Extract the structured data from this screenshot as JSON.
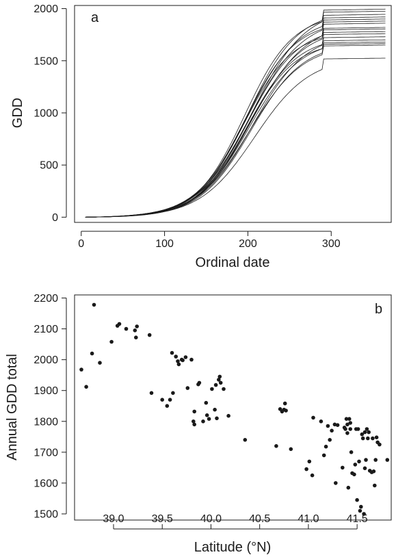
{
  "chart_data": [
    {
      "type": "line",
      "panel_label": "a",
      "xlabel": "Ordinal date",
      "ylabel": "GDD",
      "xlim": [
        -8,
        372
      ],
      "ylim": [
        -50,
        2030
      ],
      "xticks": [
        0,
        100,
        200,
        300
      ],
      "yticks": [
        0,
        500,
        1000,
        1500,
        2000
      ],
      "grid": false,
      "series": [
        {
          "final": 1995,
          "midpoint": 205,
          "width": 32
        },
        {
          "final": 1975,
          "midpoint": 200,
          "width": 30
        },
        {
          "final": 1945,
          "midpoint": 196,
          "width": 29
        },
        {
          "final": 1920,
          "midpoint": 199,
          "width": 31
        },
        {
          "final": 1900,
          "midpoint": 202,
          "width": 32
        },
        {
          "final": 1880,
          "midpoint": 197,
          "width": 30
        },
        {
          "final": 1860,
          "midpoint": 205,
          "width": 33
        },
        {
          "final": 1820,
          "midpoint": 200,
          "width": 30
        },
        {
          "final": 1805,
          "midpoint": 203,
          "width": 31
        },
        {
          "final": 1780,
          "midpoint": 195,
          "width": 29
        },
        {
          "final": 1760,
          "midpoint": 206,
          "width": 32
        },
        {
          "final": 1730,
          "midpoint": 199,
          "width": 30
        },
        {
          "final": 1700,
          "midpoint": 201,
          "width": 31
        },
        {
          "final": 1680,
          "midpoint": 198,
          "width": 29
        },
        {
          "final": 1665,
          "midpoint": 204,
          "width": 31
        },
        {
          "final": 1650,
          "midpoint": 202,
          "width": 32
        },
        {
          "final": 1525,
          "midpoint": 208,
          "width": 33
        }
      ]
    },
    {
      "type": "scatter",
      "panel_label": "b",
      "xlabel": "Latitude (°N)",
      "ylabel": "Annual GDD total",
      "xlim": [
        38.6,
        41.85
      ],
      "ylim": [
        1480,
        2210
      ],
      "xticks": [
        39.0,
        39.5,
        40.0,
        40.5,
        41.0,
        41.5
      ],
      "xtick_labels": [
        "39.0",
        "39.5",
        "40.0",
        "40.5",
        "41.0",
        "41.5"
      ],
      "yticks": [
        1500,
        1600,
        1700,
        1800,
        1900,
        2000,
        2100,
        2200
      ],
      "grid": false,
      "points": [
        [
          38.67,
          1968
        ],
        [
          38.72,
          1912
        ],
        [
          38.78,
          2020
        ],
        [
          38.8,
          2178
        ],
        [
          38.86,
          1990
        ],
        [
          38.98,
          2058
        ],
        [
          39.04,
          2110
        ],
        [
          39.06,
          2116
        ],
        [
          39.13,
          2100
        ],
        [
          39.22,
          2095
        ],
        [
          39.23,
          2072
        ],
        [
          39.24,
          2108
        ],
        [
          39.37,
          2080
        ],
        [
          39.39,
          1892
        ],
        [
          39.5,
          1870
        ],
        [
          39.55,
          1850
        ],
        [
          39.58,
          1870
        ],
        [
          39.6,
          2022
        ],
        [
          39.61,
          1892
        ],
        [
          39.64,
          2010
        ],
        [
          39.66,
          1995
        ],
        [
          39.67,
          1985
        ],
        [
          39.7,
          2000
        ],
        [
          39.71,
          1998
        ],
        [
          39.74,
          2008
        ],
        [
          39.76,
          1908
        ],
        [
          39.8,
          2000
        ],
        [
          39.82,
          1800
        ],
        [
          39.83,
          1790
        ],
        [
          39.83,
          1832
        ],
        [
          39.87,
          1920
        ],
        [
          39.88,
          1925
        ],
        [
          39.92,
          1800
        ],
        [
          39.95,
          1860
        ],
        [
          39.96,
          1820
        ],
        [
          39.98,
          1808
        ],
        [
          40.01,
          1905
        ],
        [
          40.04,
          1838
        ],
        [
          40.05,
          1918
        ],
        [
          40.06,
          1810
        ],
        [
          40.08,
          1935
        ],
        [
          40.09,
          1945
        ],
        [
          40.1,
          1925
        ],
        [
          40.13,
          1905
        ],
        [
          40.18,
          1818
        ],
        [
          40.35,
          1740
        ],
        [
          40.67,
          1720
        ],
        [
          40.71,
          1840
        ],
        [
          40.73,
          1832
        ],
        [
          40.75,
          1838
        ],
        [
          40.76,
          1858
        ],
        [
          40.77,
          1835
        ],
        [
          40.82,
          1710
        ],
        [
          40.98,
          1645
        ],
        [
          41.01,
          1670
        ],
        [
          41.04,
          1625
        ],
        [
          41.05,
          1812
        ],
        [
          41.13,
          1800
        ],
        [
          41.16,
          1690
        ],
        [
          41.18,
          1718
        ],
        [
          41.2,
          1785
        ],
        [
          41.22,
          1740
        ],
        [
          41.24,
          1770
        ],
        [
          41.27,
          1790
        ],
        [
          41.28,
          1600
        ],
        [
          41.3,
          1788
        ],
        [
          41.35,
          1650
        ],
        [
          41.37,
          1780
        ],
        [
          41.38,
          1775
        ],
        [
          41.39,
          1808
        ],
        [
          41.4,
          1790
        ],
        [
          41.4,
          1762
        ],
        [
          41.41,
          1585
        ],
        [
          41.42,
          1808
        ],
        [
          41.43,
          1795
        ],
        [
          41.43,
          1775
        ],
        [
          41.44,
          1700
        ],
        [
          41.45,
          1632
        ],
        [
          41.47,
          1628
        ],
        [
          41.48,
          1660
        ],
        [
          41.49,
          1775
        ],
        [
          41.5,
          1545
        ],
        [
          41.51,
          1775
        ],
        [
          41.52,
          1670
        ],
        [
          41.53,
          1510
        ],
        [
          41.54,
          1523
        ],
        [
          41.55,
          1758
        ],
        [
          41.56,
          1745
        ],
        [
          41.57,
          1500
        ],
        [
          41.58,
          1765
        ],
        [
          41.58,
          1648
        ],
        [
          41.59,
          1675
        ],
        [
          41.6,
          1775
        ],
        [
          41.61,
          1745
        ],
        [
          41.62,
          1765
        ],
        [
          41.63,
          1640
        ],
        [
          41.65,
          1635
        ],
        [
          41.66,
          1745
        ],
        [
          41.67,
          1638
        ],
        [
          41.68,
          1592
        ],
        [
          41.69,
          1675
        ],
        [
          41.7,
          1748
        ],
        [
          41.71,
          1732
        ],
        [
          41.73,
          1725
        ],
        [
          41.81,
          1675
        ]
      ]
    }
  ]
}
